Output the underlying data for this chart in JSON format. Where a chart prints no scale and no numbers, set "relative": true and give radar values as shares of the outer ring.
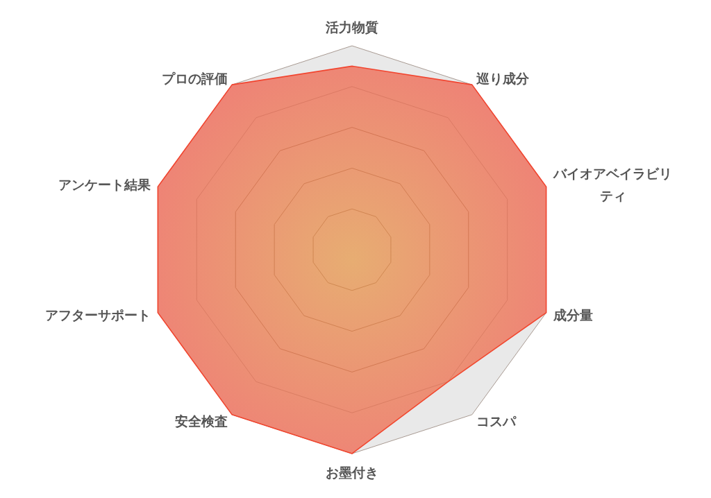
{
  "chart_data": {
    "type": "radar",
    "relative": true,
    "categories": [
      "活力物質",
      "巡り成分",
      "バイオアベイラビリティ",
      "成分量",
      "コスパ",
      "お墨付き",
      "安全検査",
      "アフターサポート",
      "アンケート結果",
      "プロの評価"
    ],
    "series": [
      {
        "color": "#f2432f",
        "values": [
          0.9,
          1,
          1,
          1,
          0.8,
          1,
          1,
          1,
          1,
          1
        ]
      }
    ],
    "grid": true,
    "marker": "none"
  }
}
